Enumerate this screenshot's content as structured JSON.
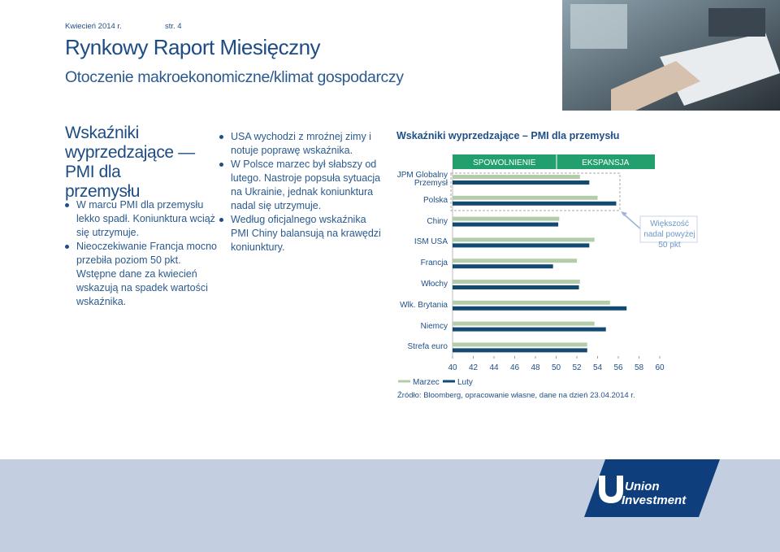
{
  "header": {
    "date": "Kwiecień 2014 r.",
    "page": "str. 4",
    "title": "Rynkowy Raport Miesięczny",
    "subtitle": "Otoczenie makroekonomiczne/klimat gospodarczy"
  },
  "section": {
    "heading": "Wskaźniki wyprzedzające — PMI dla przemysłu",
    "bullets_left": [
      "W marcu PMI dla przemysłu lekko spadł. Koniunktura wciąż się utrzymuje.",
      "Nieoczekiwanie Francja mocno przebiła poziom 50 pkt. Wstępne dane za kwiecień wskazują na spadek wartości wskaźnika."
    ],
    "bullets_middle": [
      "USA wychodzi z mroźnej zimy i notuje poprawę wskaźnika.",
      "W Polsce marzec był słabszy od lutego. Nastroje popsuła sytuacja na Ukrainie, jednak koniunktura nadal się utrzymuje.",
      "Według oficjalnego wskaźnika PMI Chiny balansują na krawędzi koniunktury."
    ]
  },
  "chart_data": {
    "type": "bar",
    "orientation": "horizontal",
    "title": "Wskaźniki wyprzedzające – PMI dla przemysłu",
    "categories": [
      "JPM Globalny Przemysł",
      "Polska",
      "Chiny",
      "ISM USA",
      "Francja",
      "Włochy",
      "Wlk. Brytania",
      "Niemcy",
      "Strefa euro"
    ],
    "series": [
      {
        "name": "Marzec",
        "color": "#b3cdab",
        "values": [
          52.3,
          54.0,
          50.3,
          53.7,
          52.0,
          52.3,
          55.2,
          53.7,
          53.0
        ]
      },
      {
        "name": "Luty",
        "color": "#124a72",
        "values": [
          53.2,
          55.8,
          50.2,
          53.2,
          49.7,
          52.2,
          56.8,
          54.8,
          53.0
        ]
      }
    ],
    "xlim": [
      40,
      60
    ],
    "xticks": [
      40,
      42,
      44,
      46,
      48,
      50,
      52,
      54,
      56,
      58,
      60
    ],
    "grid": false,
    "legend": "bottom-left",
    "bands": [
      {
        "label": "SPOWOLNIENIE",
        "color": "#21a06e"
      },
      {
        "label": "EKSPANSJA",
        "color": "#21a06e"
      }
    ],
    "annotation": "Większość nadal powyżej 50 pkt",
    "source": "Źródło: Bloomberg, opracowanie własne, dane na dzień 23.04.2014 r."
  },
  "footer": {
    "logo": "Union Investment"
  }
}
